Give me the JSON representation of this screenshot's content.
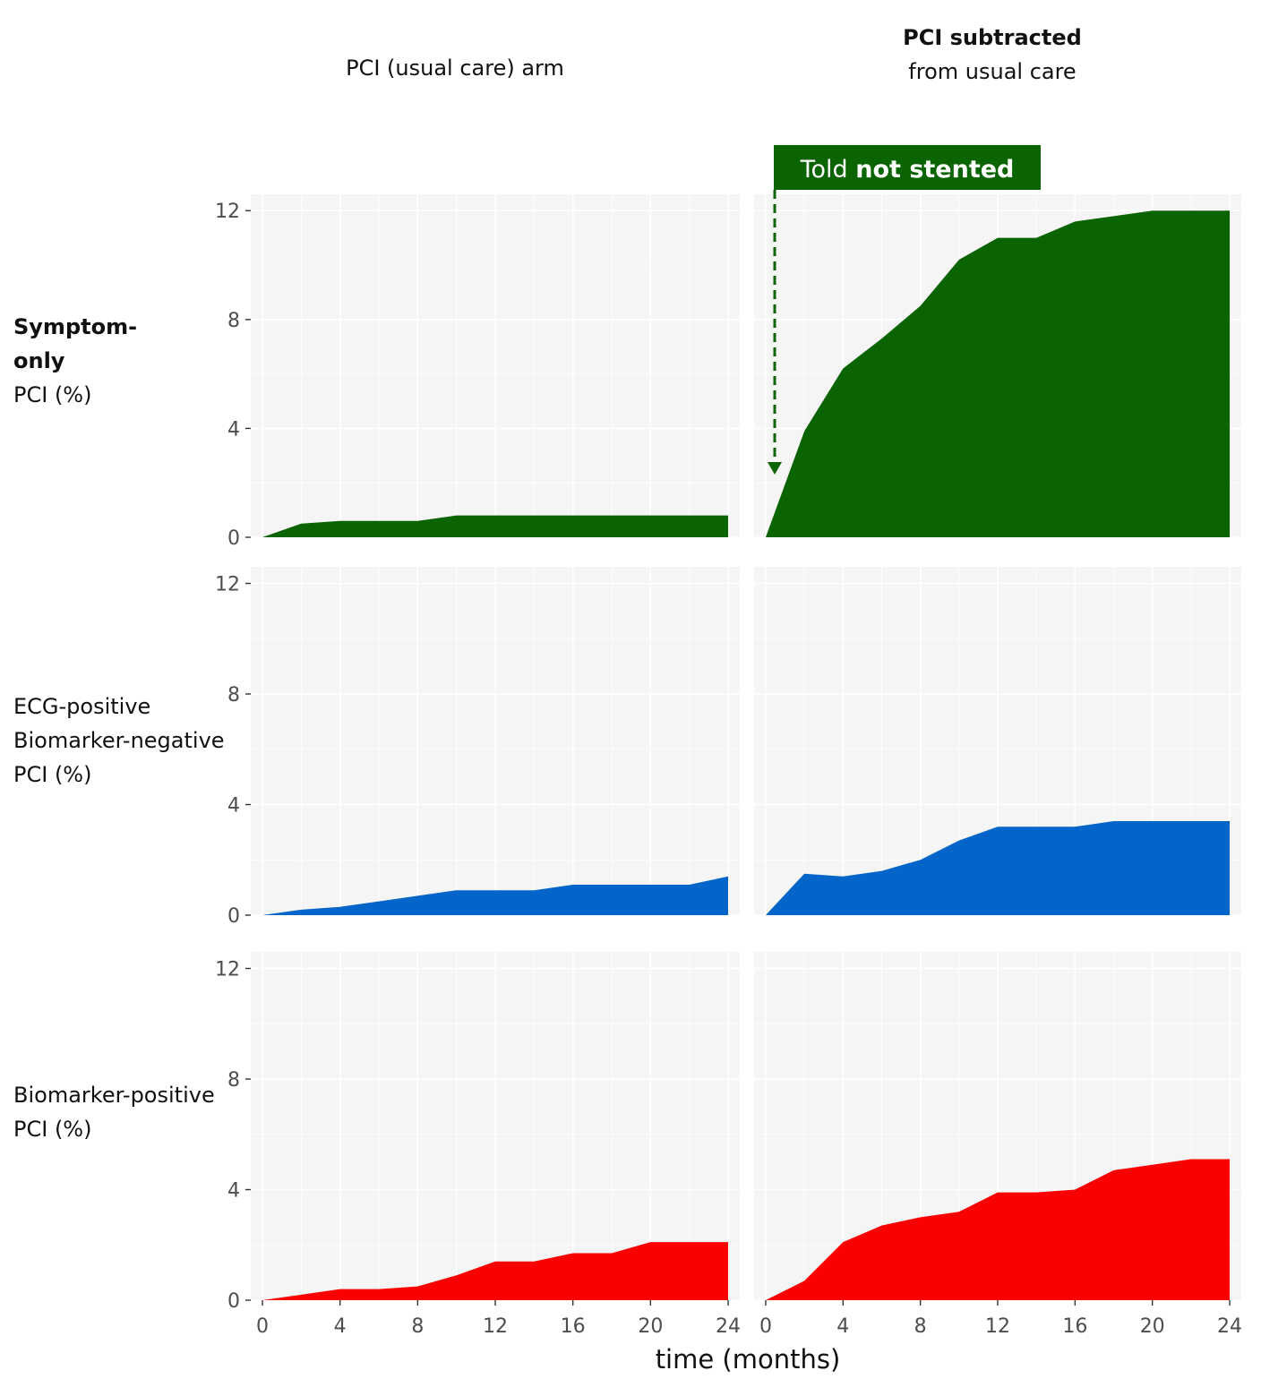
{
  "chart_data": {
    "type": "area",
    "layout": "faceted grid (3 rows x 2 columns)",
    "columns": [
      {
        "id": "usual",
        "title_lines": [
          "PCI (usual care) arm"
        ]
      },
      {
        "id": "subtracted",
        "title_bold": "PCI subtracted",
        "title_rest": "from usual care"
      }
    ],
    "rows": [
      {
        "id": "symptom",
        "label_bold_lines": [
          "Symptom-",
          "only"
        ],
        "label_lines": [
          "PCI (%)"
        ],
        "color": "#0b6402"
      },
      {
        "id": "ecg",
        "label_bold_lines": [],
        "label_lines": [
          "ECG-positive",
          "Biomarker-negative",
          "PCI (%)"
        ],
        "color": "#0364c9"
      },
      {
        "id": "biomarker",
        "label_bold_lines": [],
        "label_lines": [
          "Biomarker-positive",
          "PCI (%)"
        ],
        "color": "#fa0000"
      }
    ],
    "x": [
      0,
      2,
      4,
      6,
      8,
      10,
      12,
      14,
      16,
      18,
      20,
      22,
      24
    ],
    "series": [
      {
        "row": "symptom",
        "col": "usual",
        "values": [
          0,
          0.5,
          0.6,
          0.6,
          0.6,
          0.8,
          0.8,
          0.8,
          0.8,
          0.8,
          0.8,
          0.8,
          0.8
        ]
      },
      {
        "row": "symptom",
        "col": "subtracted",
        "values": [
          0,
          3.9,
          6.2,
          7.3,
          8.5,
          10.2,
          11.0,
          11.0,
          11.6,
          11.8,
          12.0,
          12.0,
          12.0
        ]
      },
      {
        "row": "ecg",
        "col": "usual",
        "values": [
          0,
          0.2,
          0.3,
          0.5,
          0.7,
          0.9,
          0.9,
          0.9,
          1.1,
          1.1,
          1.1,
          1.1,
          1.4
        ]
      },
      {
        "row": "ecg",
        "col": "subtracted",
        "values": [
          0,
          1.5,
          1.4,
          1.6,
          2.0,
          2.7,
          3.2,
          3.2,
          3.2,
          3.4,
          3.4,
          3.4,
          3.4
        ]
      },
      {
        "row": "biomarker",
        "col": "usual",
        "values": [
          0,
          0.2,
          0.4,
          0.4,
          0.5,
          0.9,
          1.4,
          1.4,
          1.7,
          1.7,
          2.1,
          2.1,
          2.1
        ]
      },
      {
        "row": "biomarker",
        "col": "subtracted",
        "values": [
          0,
          0.7,
          2.1,
          2.7,
          3.0,
          3.2,
          3.9,
          3.9,
          4.0,
          4.7,
          4.9,
          5.1,
          5.1
        ]
      }
    ],
    "xlabel": "time (months)",
    "ylabel": "PCI (%)",
    "xlim": [
      -0.6,
      24.6
    ],
    "ylim": [
      0,
      12.6
    ],
    "xticks": [
      0,
      4,
      8,
      12,
      16,
      20,
      24
    ],
    "yticks": [
      0,
      4,
      8,
      12
    ],
    "grid": true,
    "annotation": {
      "text_normal": "Told ",
      "text_bold": "not stented",
      "color": "#0b6402",
      "arrow_at_x": 0,
      "panel": "symptom/subtracted"
    }
  }
}
